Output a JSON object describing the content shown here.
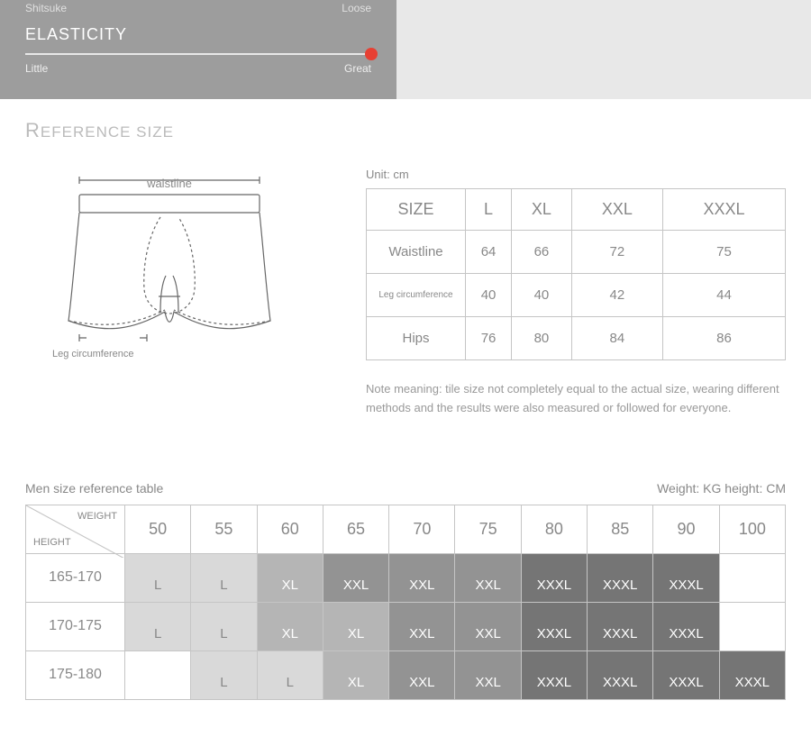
{
  "top": {
    "shitsuke_left": "Shitsuke",
    "shitsuke_right": "Loose",
    "elasticity_title": "ELASTICITY",
    "slider_left": "Little",
    "slider_right": "Great",
    "knob_color": "#e74033",
    "knob_position": 1.0
  },
  "section_title_first": "R",
  "section_title_rest": "EFERENCE SIZE",
  "diagram": {
    "waistline_label": "waistline",
    "leg_label": "Leg circumference",
    "stroke": "#666666"
  },
  "unit_label": "Unit: cm",
  "size_table": {
    "headers": [
      "SIZE",
      "L",
      "XL",
      "XXL",
      "XXXL"
    ],
    "rows": [
      {
        "label": "Waistline",
        "small": false,
        "vals": [
          "64",
          "66",
          "72",
          "75"
        ]
      },
      {
        "label": "Leg circumference",
        "small": true,
        "vals": [
          "40",
          "40",
          "42",
          "44"
        ]
      },
      {
        "label": "Hips",
        "small": false,
        "vals": [
          "76",
          "80",
          "84",
          "86"
        ]
      }
    ],
    "border_color": "#c5c5c5"
  },
  "note": "Note meaning: tile size not completely equal to the actual size, wearing different methods and the results were also measured or followed for everyone.",
  "ref": {
    "title_left": "Men size reference table",
    "title_right": "Weight: KG height: CM",
    "corner_weight": "WEIGHT",
    "corner_height": "HEIGHT",
    "weights": [
      "50",
      "55",
      "60",
      "65",
      "70",
      "75",
      "80",
      "85",
      "90",
      "100"
    ],
    "heights": [
      "165-170",
      "170-175",
      "175-180"
    ],
    "shade_colors": {
      "s0": "#ffffff",
      "s1": "#d9d9d9",
      "s2": "#b5b5b5",
      "s3": "#939393",
      "s4": "#757575"
    },
    "grid": [
      [
        {
          "t": "L",
          "s": 1
        },
        {
          "t": "L",
          "s": 1
        },
        {
          "t": "XL",
          "s": 2
        },
        {
          "t": "XXL",
          "s": 3
        },
        {
          "t": "XXL",
          "s": 3
        },
        {
          "t": "XXL",
          "s": 3
        },
        {
          "t": "XXXL",
          "s": 4
        },
        {
          "t": "XXXL",
          "s": 4
        },
        {
          "t": "XXXL",
          "s": 4
        },
        {
          "t": "",
          "s": 0
        }
      ],
      [
        {
          "t": "L",
          "s": 1
        },
        {
          "t": "L",
          "s": 1
        },
        {
          "t": "XL",
          "s": 2
        },
        {
          "t": "XL",
          "s": 2
        },
        {
          "t": "XXL",
          "s": 3
        },
        {
          "t": "XXL",
          "s": 3
        },
        {
          "t": "XXXL",
          "s": 4
        },
        {
          "t": "XXXL",
          "s": 4
        },
        {
          "t": "XXXL",
          "s": 4
        },
        {
          "t": "",
          "s": 0
        }
      ],
      [
        {
          "t": "",
          "s": 0
        },
        {
          "t": "L",
          "s": 1
        },
        {
          "t": "L",
          "s": 1
        },
        {
          "t": "XL",
          "s": 2
        },
        {
          "t": "XXL",
          "s": 3
        },
        {
          "t": "XXL",
          "s": 3
        },
        {
          "t": "XXXL",
          "s": 4
        },
        {
          "t": "XXXL",
          "s": 4
        },
        {
          "t": "XXXL",
          "s": 4
        },
        {
          "t": "XXXL",
          "s": 4
        }
      ]
    ]
  }
}
